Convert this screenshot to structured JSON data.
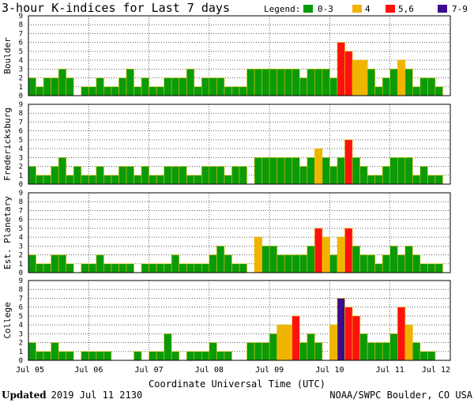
{
  "chart_data": {
    "type": "bar",
    "title": "3-hour K-indices for Last 7 days",
    "legend": {
      "label": "Legend:",
      "placement": "top-right",
      "items": [
        {
          "label": "0-3",
          "color": "#0a9b0a"
        },
        {
          "label": "4",
          "color": "#f0b400"
        },
        {
          "label": "5,6",
          "color": "#ff1010"
        },
        {
          "label": "7-9",
          "color": "#3c0a8c"
        }
      ]
    },
    "ylim": [
      0,
      9
    ],
    "yticks": [
      "0",
      "1",
      "2",
      "3",
      "4",
      "5",
      "6",
      "7",
      "8",
      "9"
    ],
    "xticks": [
      "Jul 05",
      "Jul 06",
      "Jul 07",
      "Jul 08",
      "Jul 09",
      "Jul 10",
      "Jul 11",
      "Jul 12"
    ],
    "xlabel": "Coordinate Universal Time (UTC)",
    "grid": true,
    "series": [
      {
        "name": "Boulder",
        "values": [
          2,
          1,
          2,
          2,
          3,
          2,
          0,
          1,
          1,
          2,
          1,
          1,
          2,
          3,
          1,
          2,
          1,
          1,
          2,
          2,
          2,
          3,
          1,
          2,
          2,
          2,
          1,
          1,
          1,
          3,
          3,
          3,
          3,
          3,
          3,
          3,
          2,
          3,
          3,
          3,
          2,
          6,
          5,
          4,
          4,
          3,
          1,
          2,
          3,
          4,
          3,
          1,
          2,
          2,
          1,
          0
        ]
      },
      {
        "name": "Fredericksburg",
        "values": [
          2,
          1,
          1,
          2,
          3,
          1,
          2,
          1,
          1,
          2,
          1,
          1,
          2,
          2,
          1,
          2,
          1,
          1,
          2,
          2,
          2,
          1,
          1,
          2,
          2,
          2,
          1,
          2,
          2,
          0,
          3,
          3,
          3,
          3,
          3,
          3,
          2,
          3,
          4,
          3,
          2,
          3,
          5,
          3,
          2,
          1,
          1,
          2,
          3,
          3,
          3,
          1,
          2,
          1,
          1,
          0
        ]
      },
      {
        "name": "Est. Planetary",
        "values": [
          2,
          1,
          1,
          2,
          2,
          1,
          0,
          1,
          1,
          2,
          1,
          1,
          1,
          1,
          0,
          1,
          1,
          1,
          1,
          2,
          1,
          1,
          1,
          1,
          2,
          3,
          2,
          1,
          1,
          0,
          4,
          3,
          3,
          2,
          2,
          2,
          2,
          3,
          5,
          4,
          2,
          4,
          5,
          3,
          2,
          2,
          1,
          2,
          3,
          2,
          3,
          2,
          1,
          1,
          1,
          0
        ]
      },
      {
        "name": "College",
        "values": [
          2,
          1,
          1,
          2,
          1,
          1,
          0,
          1,
          1,
          1,
          1,
          0,
          0,
          0,
          1,
          0,
          1,
          1,
          3,
          1,
          0,
          1,
          1,
          1,
          2,
          1,
          1,
          0,
          0,
          2,
          2,
          2,
          3,
          4,
          4,
          5,
          2,
          3,
          2,
          0,
          4,
          7,
          6,
          5,
          3,
          2,
          2,
          2,
          3,
          6,
          4,
          2,
          1,
          1,
          0,
          0
        ]
      }
    ]
  },
  "footer": {
    "updated_label": "Updated",
    "updated_value": "2019 Jul 11 2130",
    "source": "NOAA/SWPC Boulder, CO USA"
  }
}
